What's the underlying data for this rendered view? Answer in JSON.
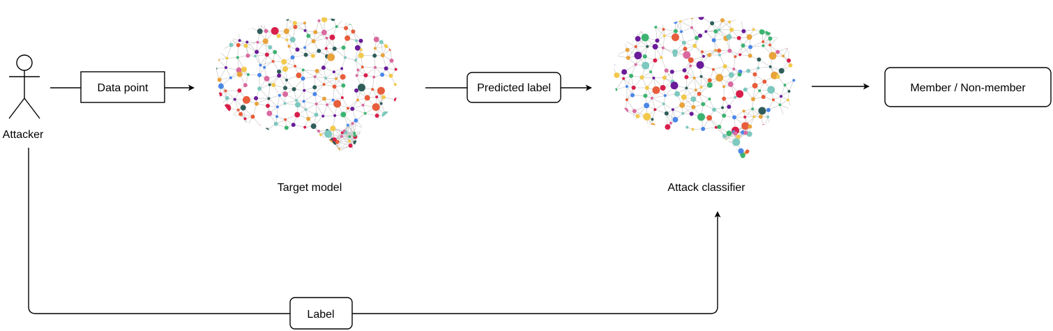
{
  "actor": {
    "label": "Attacker"
  },
  "nodes": {
    "data_point": "Data point",
    "target_model": "Target model",
    "predicted_label": "Predicted label",
    "attack_classifier": "Attack classifier",
    "output": "Member / Non-member",
    "label": "Label"
  },
  "network_palette": [
    "#d81e4a",
    "#e8a33b",
    "#4a86e8",
    "#3cb371",
    "#7dc8bf",
    "#d96aa0",
    "#6a1b9a",
    "#2f5d5a",
    "#f2c94c",
    "#e85d3b"
  ]
}
